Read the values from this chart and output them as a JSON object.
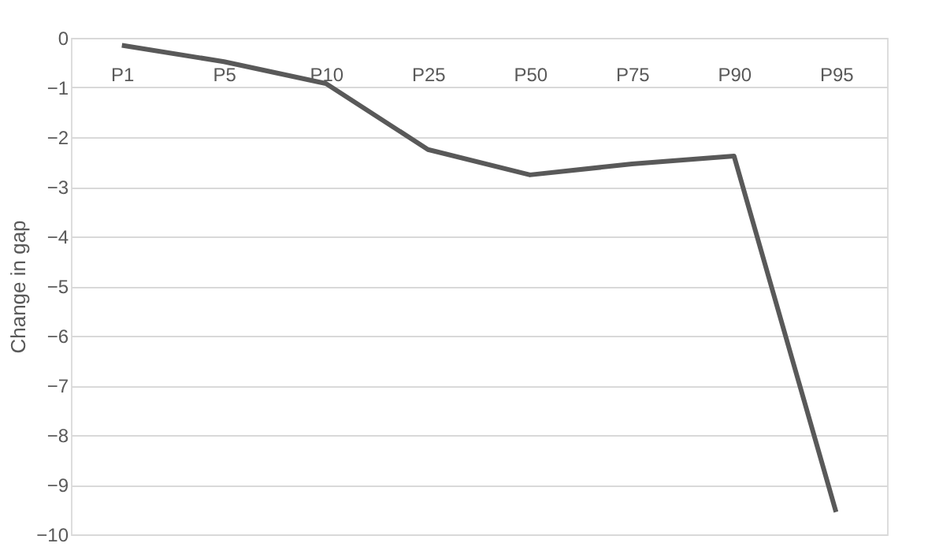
{
  "chart_data": {
    "type": "line",
    "ylabel": "Change in gap",
    "categories": [
      "P1",
      "P5",
      "P10",
      "P25",
      "P50",
      "P75",
      "P90",
      "P95"
    ],
    "series": [
      {
        "color": "#595959",
        "values": [
          -0.15,
          -0.48,
          -0.92,
          -2.25,
          -2.76,
          -2.54,
          -2.38,
          -9.55
        ]
      }
    ],
    "ylim": [
      -10,
      0
    ],
    "yticks": [
      -10,
      -9,
      -8,
      -7,
      -6,
      -5,
      -4,
      -3,
      -2,
      -1,
      0
    ],
    "grid": "y",
    "legend": false,
    "marker": "none",
    "line_style": "solid"
  }
}
